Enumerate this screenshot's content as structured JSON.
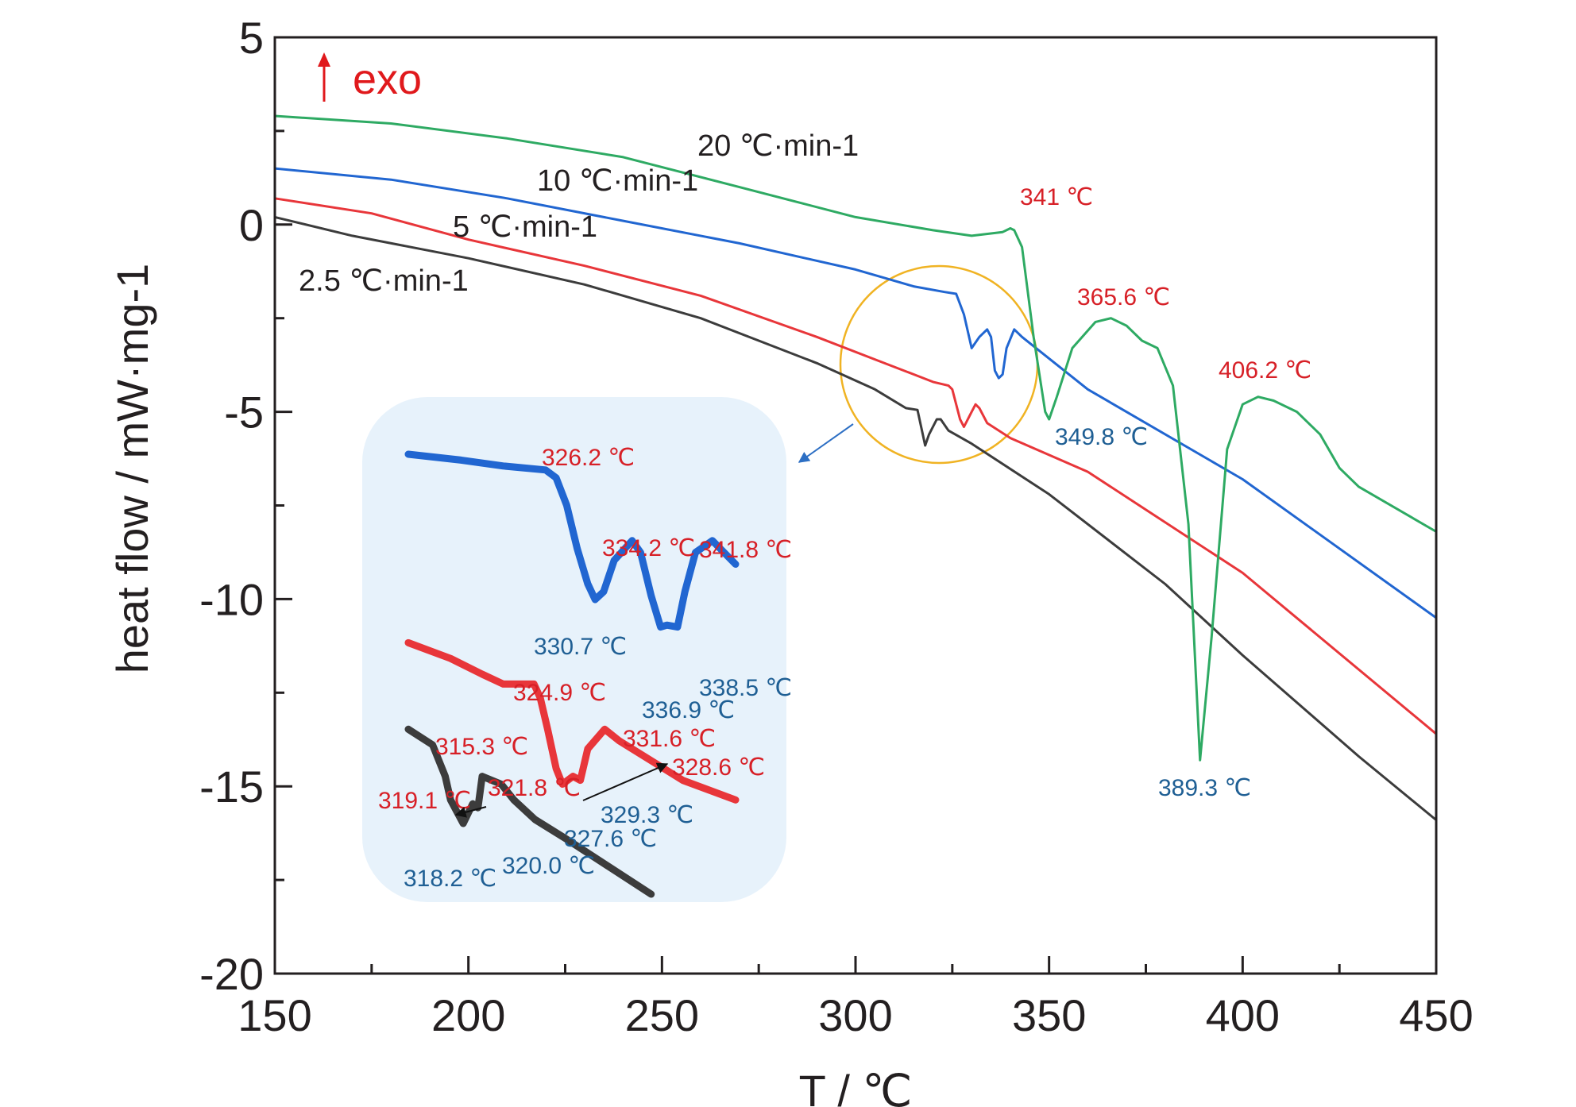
{
  "chart_data": {
    "type": "line",
    "xlabel": "T / ℃",
    "ylabel": "heat flow / mW·mg-1",
    "xlim": [
      150,
      450
    ],
    "ylim": [
      -20,
      5
    ],
    "x_ticks": [
      150,
      200,
      250,
      300,
      350,
      400,
      450
    ],
    "y_ticks": [
      5,
      0,
      -5,
      -10,
      -15,
      -20
    ],
    "grid": false,
    "exo_marker": "exo",
    "colors": {
      "black": "#3c3c3c",
      "red": "#e8363a",
      "blue": "#2166d1",
      "green": "#2eaa63",
      "circle": "#f0b323",
      "inset_bg": "#e7f2fb",
      "red_text": "#d72027",
      "blue_text": "#1f5f94"
    },
    "series": [
      {
        "name": "2.5 ℃·min-1",
        "color": "#3c3c3c",
        "x": [
          150,
          170,
          200,
          230,
          260,
          290,
          305,
          313,
          316,
          318,
          319,
          321,
          322,
          324,
          330,
          350,
          380,
          400,
          430,
          450
        ],
        "y": [
          0.2,
          -0.3,
          -0.9,
          -1.6,
          -2.5,
          -3.7,
          -4.4,
          -4.9,
          -4.95,
          -5.9,
          -5.6,
          -5.2,
          -5.2,
          -5.5,
          -5.85,
          -7.2,
          -9.6,
          -11.5,
          -14.2,
          -15.9
        ]
      },
      {
        "name": "5 ℃·min-1",
        "color": "#e8363a",
        "x": [
          150,
          175,
          200,
          230,
          260,
          290,
          305,
          310,
          315,
          320,
          324,
          325,
          327,
          328,
          330,
          331,
          332,
          334,
          340,
          360,
          400,
          450
        ],
        "y": [
          0.7,
          0.3,
          -0.4,
          -1.1,
          -1.9,
          -3.0,
          -3.6,
          -3.8,
          -4.0,
          -4.2,
          -4.3,
          -4.4,
          -5.2,
          -5.4,
          -5.0,
          -4.8,
          -4.9,
          -5.3,
          -5.7,
          -6.6,
          -9.3,
          -13.6
        ]
      },
      {
        "name": "10 ℃·min-1",
        "color": "#2166d1",
        "x": [
          150,
          180,
          210,
          240,
          270,
          300,
          315,
          323,
          326,
          328,
          330,
          332,
          334,
          335,
          336,
          337,
          338,
          339,
          341,
          343,
          360,
          400,
          450
        ],
        "y": [
          1.5,
          1.2,
          0.7,
          0.1,
          -0.5,
          -1.2,
          -1.65,
          -1.8,
          -1.85,
          -2.4,
          -3.3,
          -3.0,
          -2.8,
          -3.0,
          -3.9,
          -4.1,
          -4.0,
          -3.3,
          -2.8,
          -3.0,
          -4.4,
          -6.8,
          -10.5
        ]
      },
      {
        "name": "20 ℃·min-1",
        "color": "#2eaa63",
        "x": [
          150,
          180,
          210,
          240,
          270,
          300,
          320,
          330,
          338,
          340,
          341,
          343,
          346,
          349,
          350,
          352,
          356,
          362,
          366,
          370,
          374,
          378,
          382,
          386,
          389,
          392,
          396,
          400,
          404,
          408,
          414,
          420,
          425,
          430,
          450
        ],
        "y": [
          2.9,
          2.7,
          2.3,
          1.8,
          1.0,
          0.2,
          -0.15,
          -0.3,
          -0.2,
          -0.1,
          -0.15,
          -0.6,
          -3.0,
          -5.0,
          -5.2,
          -4.6,
          -3.3,
          -2.6,
          -2.5,
          -2.7,
          -3.1,
          -3.3,
          -4.3,
          -8.0,
          -14.3,
          -11.0,
          -6.0,
          -4.8,
          -4.6,
          -4.7,
          -5.0,
          -5.6,
          -6.5,
          -7.0,
          -8.2
        ]
      }
    ],
    "rate_labels": [
      "20 ℃·min-1",
      "10 ℃·min-1",
      "5 ℃·min-1",
      "2.5 ℃·min-1"
    ],
    "annotations": [
      {
        "text": "341 ℃",
        "x": 341,
        "y": 0.6,
        "color": "red"
      },
      {
        "text": "365.6 ℃",
        "x": 365.6,
        "y": -2.0,
        "color": "red"
      },
      {
        "text": "349.8 ℃",
        "x": 349.8,
        "y": -5.7,
        "color": "blue"
      },
      {
        "text": "406.2 ℃",
        "x": 406.2,
        "y": -3.9,
        "color": "red"
      },
      {
        "text": "389.3 ℃",
        "x": 389.3,
        "y": -15.4,
        "color": "blue"
      }
    ],
    "inset": {
      "series": [
        {
          "name": "10 ℃·min-1",
          "color": "#2166d1",
          "x": [
            313,
            318,
            322,
            326,
            327,
            328,
            329,
            330,
            330.7,
            331.5,
            332.5,
            334.2,
            335,
            336,
            336.9,
            337.5,
            338.5,
            339.2,
            340.2,
            341.8,
            344
          ],
          "y": [
            0.0,
            -0.15,
            -0.3,
            -0.4,
            -0.6,
            -1.3,
            -2.4,
            -3.3,
            -3.7,
            -3.5,
            -2.7,
            -2.2,
            -2.5,
            -3.6,
            -4.4,
            -4.35,
            -4.4,
            -3.5,
            -2.5,
            -2.2,
            -2.8
          ]
        },
        {
          "name": "5 ℃·min-1",
          "color": "#e8363a",
          "x": [
            313,
            317,
            320,
            322,
            324.9,
            325.5,
            326.2,
            327,
            327.6,
            328.6,
            329.3,
            330,
            331.6,
            333,
            336,
            339,
            344
          ],
          "y": [
            -4.8,
            -5.2,
            -5.6,
            -5.85,
            -5.85,
            -6.2,
            -7.0,
            -8.0,
            -8.4,
            -8.2,
            -8.3,
            -7.5,
            -7.0,
            -7.3,
            -7.8,
            -8.3,
            -8.8
          ]
        },
        {
          "name": "2.5 ℃·min-1",
          "color": "#3c3c3c",
          "x": [
            313,
            315.3,
            316.5,
            317,
            318.2,
            319.1,
            319.6,
            320.0,
            321.8,
            323,
            325,
            328,
            332,
            336
          ],
          "y": [
            -7.0,
            -7.4,
            -8.2,
            -8.8,
            -9.4,
            -8.9,
            -9.0,
            -8.2,
            -8.4,
            -8.8,
            -9.3,
            -9.8,
            -10.5,
            -11.2
          ]
        }
      ],
      "annotations": [
        {
          "text": "326.2 ℃",
          "color": "red"
        },
        {
          "text": "334.2 ℃",
          "color": "red"
        },
        {
          "text": "341.8 ℃",
          "color": "red"
        },
        {
          "text": "330.7 ℃",
          "color": "blue"
        },
        {
          "text": "336.9 ℃",
          "color": "blue"
        },
        {
          "text": "338.5 ℃",
          "color": "blue"
        },
        {
          "text": "324.9 ℃",
          "color": "red"
        },
        {
          "text": "331.6 ℃",
          "color": "red"
        },
        {
          "text": "328.6 ℃",
          "color": "red"
        },
        {
          "text": "329.3 ℃",
          "color": "blue"
        },
        {
          "text": "327.6 ℃",
          "color": "blue"
        },
        {
          "text": "315.3 ℃",
          "color": "red"
        },
        {
          "text": "321.8 ℃",
          "color": "red"
        },
        {
          "text": "319.1 ℃",
          "color": "red"
        },
        {
          "text": "318.2 ℃",
          "color": "blue"
        },
        {
          "text": "320.0 ℃",
          "color": "blue"
        }
      ]
    }
  }
}
